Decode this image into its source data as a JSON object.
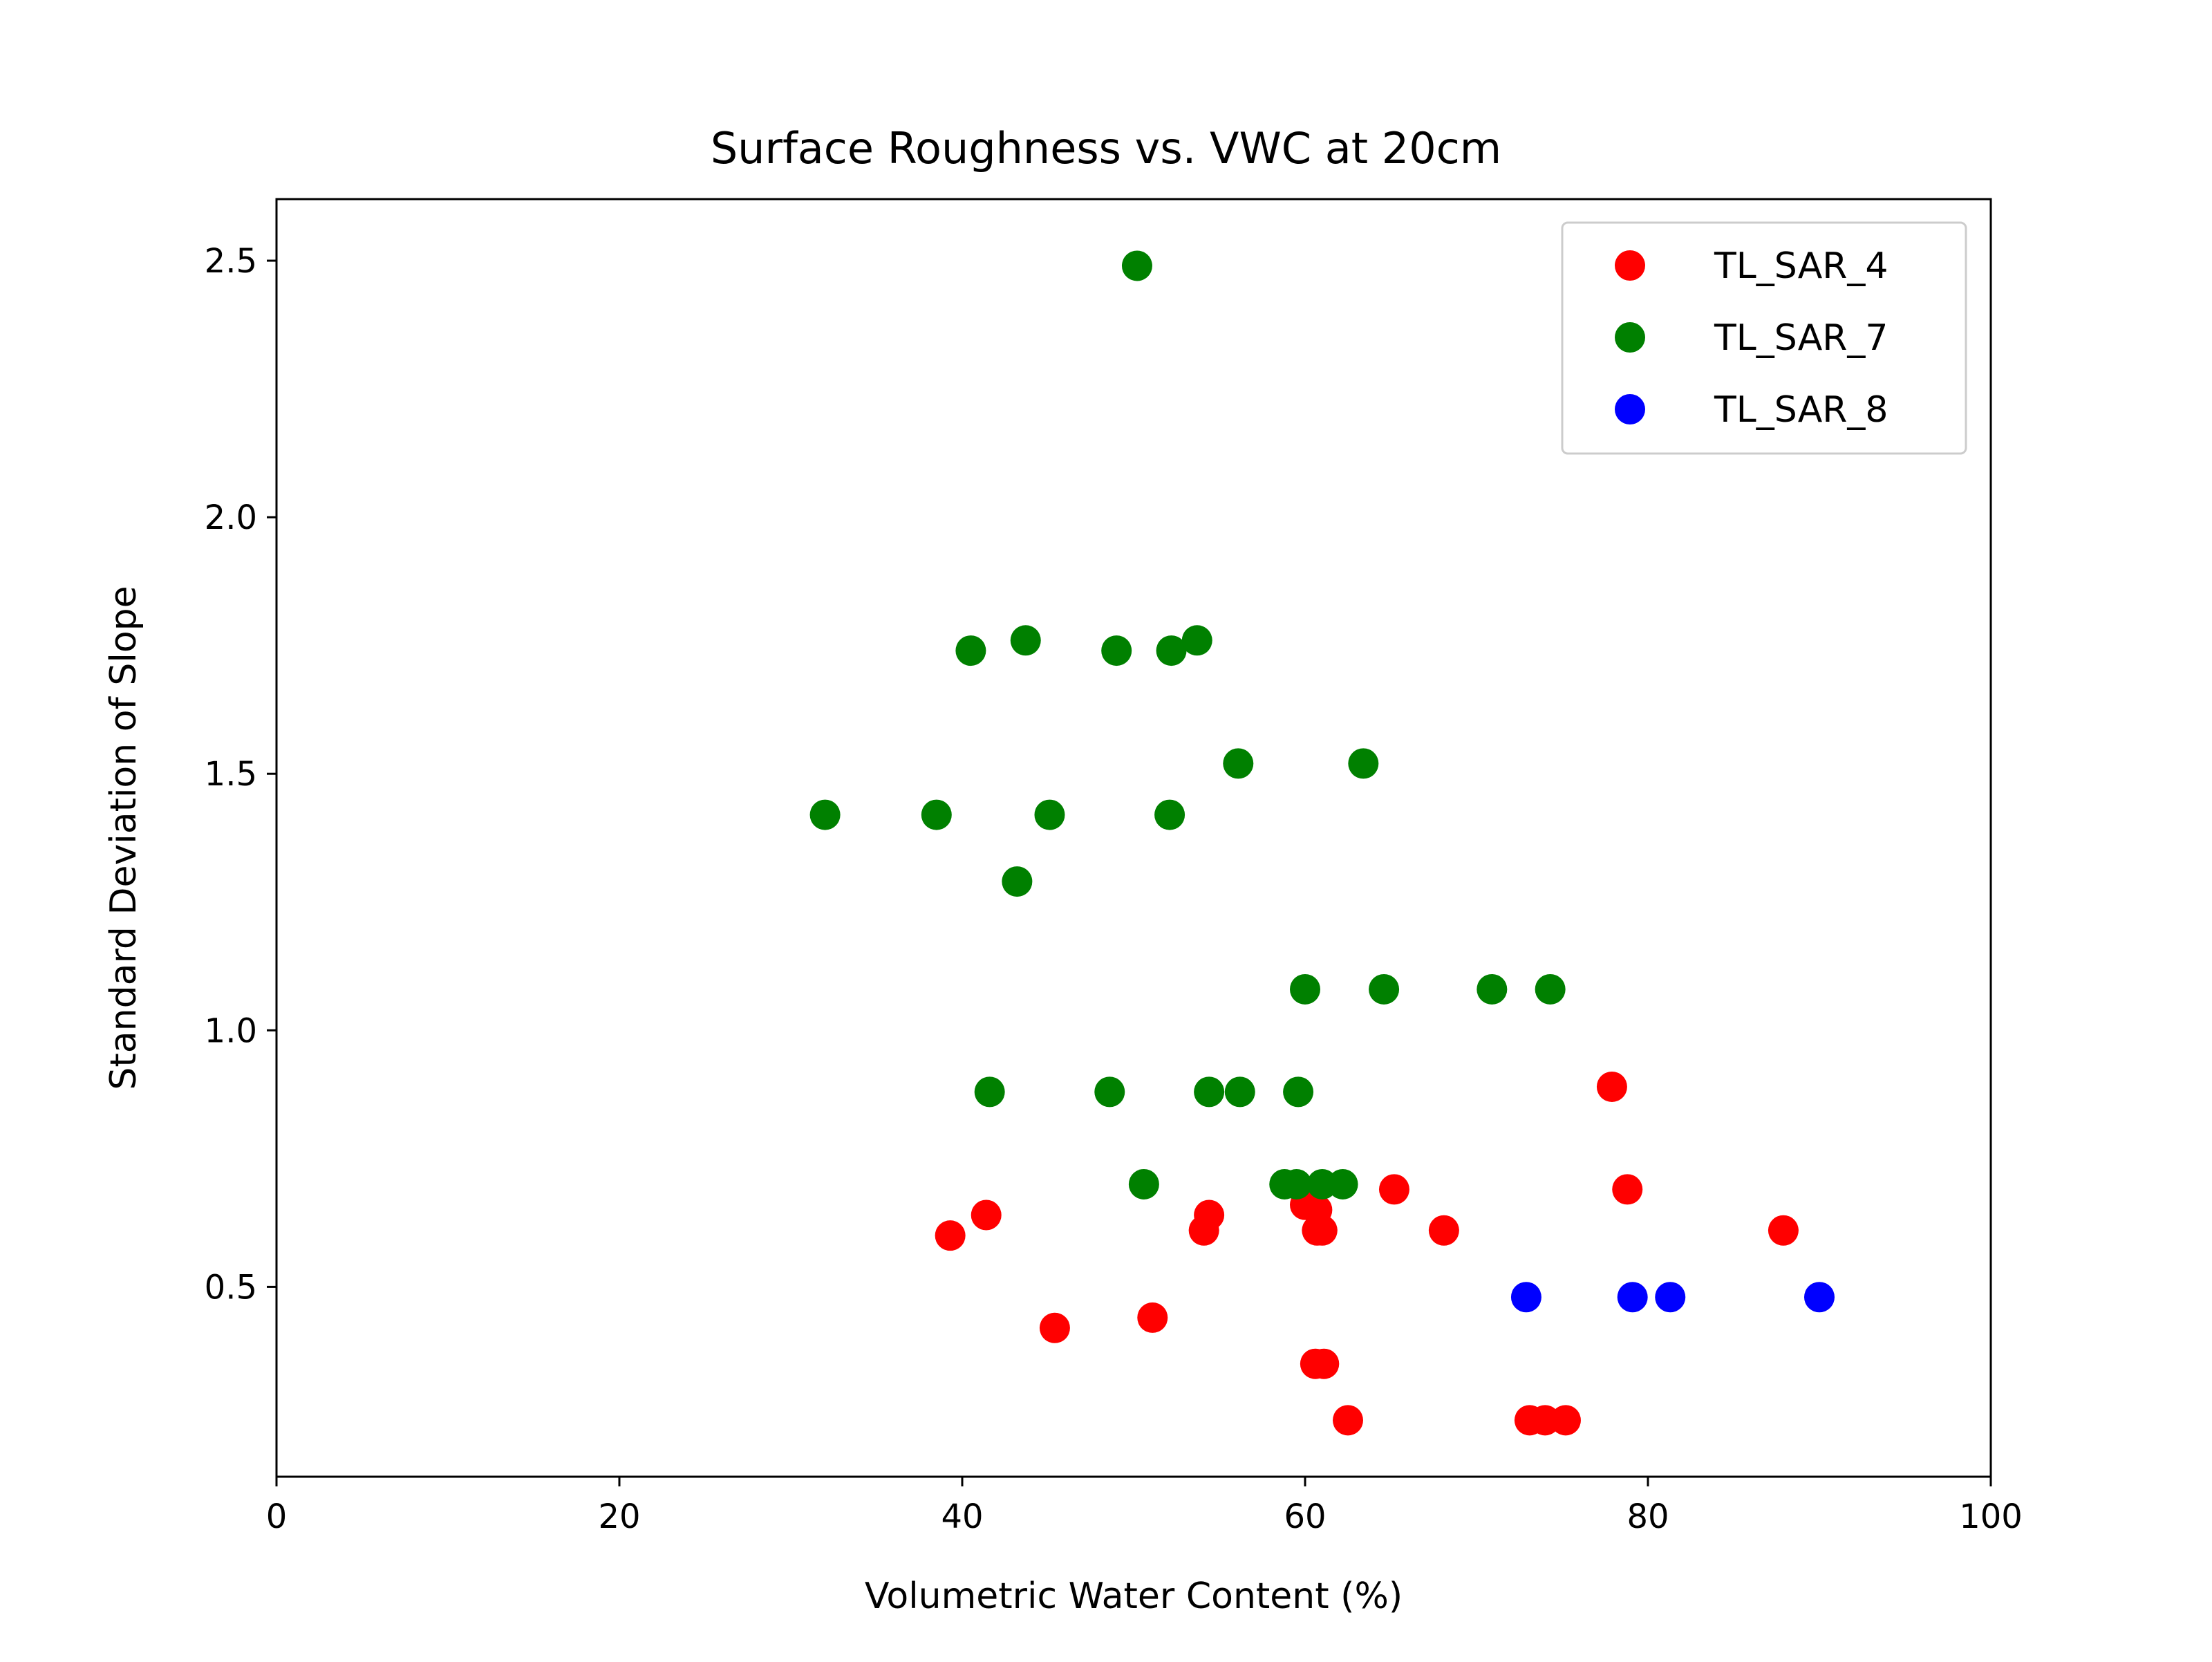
{
  "chart_data": {
    "type": "scatter",
    "title": "Surface Roughness vs. VWC at 20cm",
    "xlabel": "Volumetric Water Content (%)",
    "ylabel": "Standard Deviation of Slope",
    "xlim": [
      0,
      100
    ],
    "ylim": [
      0.13,
      2.62
    ],
    "xticks": [
      0,
      20,
      40,
      60,
      80,
      100
    ],
    "xtick_labels": [
      "0",
      "20",
      "40",
      "60",
      "80",
      "100"
    ],
    "yticks": [
      0.5,
      1.0,
      1.5,
      2.0,
      2.5
    ],
    "ytick_labels": [
      "0.5",
      "1.0",
      "1.5",
      "2.0",
      "2.5"
    ],
    "grid": false,
    "legend_position": "top-right",
    "series": [
      {
        "name": "TL_SAR_4",
        "color": "#ff0000",
        "points": [
          [
            39.3,
            0.6
          ],
          [
            41.4,
            0.64
          ],
          [
            45.4,
            0.42
          ],
          [
            51.1,
            0.44
          ],
          [
            54.1,
            0.61
          ],
          [
            54.4,
            0.64
          ],
          [
            60.0,
            0.66
          ],
          [
            60.7,
            0.65
          ],
          [
            60.7,
            0.61
          ],
          [
            61.0,
            0.61
          ],
          [
            60.6,
            0.35
          ],
          [
            61.1,
            0.35
          ],
          [
            62.5,
            0.24
          ],
          [
            65.2,
            0.69
          ],
          [
            68.1,
            0.61
          ],
          [
            73.1,
            0.24
          ],
          [
            74.0,
            0.24
          ],
          [
            75.2,
            0.24
          ],
          [
            77.9,
            0.89
          ],
          [
            78.8,
            0.69
          ],
          [
            87.9,
            0.61
          ]
        ]
      },
      {
        "name": "TL_SAR_7",
        "color": "#008000",
        "points": [
          [
            50.2,
            2.49
          ],
          [
            40.5,
            1.74
          ],
          [
            43.7,
            1.76
          ],
          [
            49.0,
            1.74
          ],
          [
            52.2,
            1.74
          ],
          [
            53.7,
            1.76
          ],
          [
            56.1,
            1.52
          ],
          [
            63.4,
            1.52
          ],
          [
            32.0,
            1.42
          ],
          [
            38.5,
            1.42
          ],
          [
            45.1,
            1.42
          ],
          [
            52.1,
            1.42
          ],
          [
            43.2,
            1.29
          ],
          [
            60.0,
            1.08
          ],
          [
            64.6,
            1.08
          ],
          [
            70.9,
            1.08
          ],
          [
            74.3,
            1.08
          ],
          [
            41.6,
            0.88
          ],
          [
            48.6,
            0.88
          ],
          [
            54.4,
            0.88
          ],
          [
            56.2,
            0.88
          ],
          [
            59.6,
            0.88
          ],
          [
            50.6,
            0.7
          ],
          [
            58.8,
            0.7
          ],
          [
            59.5,
            0.7
          ],
          [
            61.0,
            0.7
          ],
          [
            62.2,
            0.7
          ]
        ]
      },
      {
        "name": "TL_SAR_8",
        "color": "#0000ff",
        "points": [
          [
            72.9,
            0.48
          ],
          [
            79.1,
            0.48
          ],
          [
            81.3,
            0.48
          ],
          [
            90.0,
            0.48
          ]
        ]
      }
    ]
  }
}
